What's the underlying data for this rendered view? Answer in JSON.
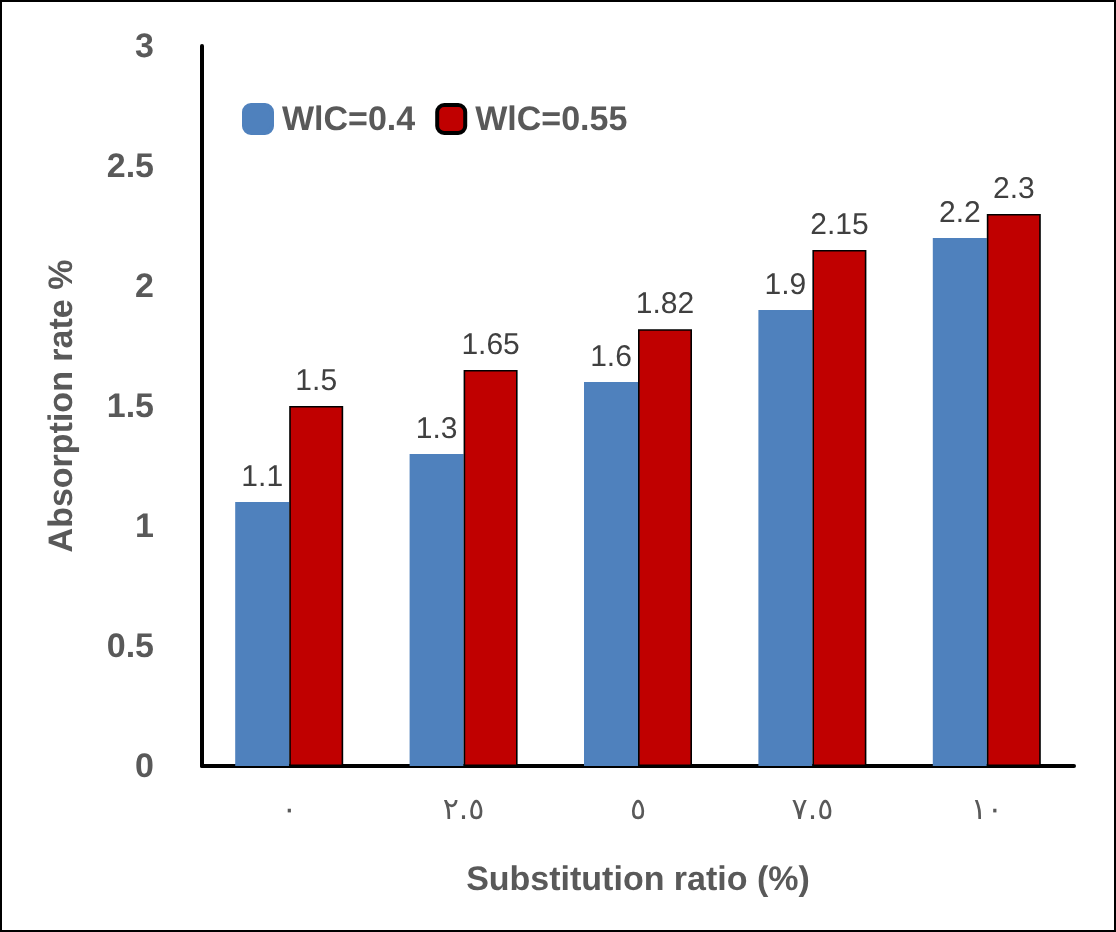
{
  "chart_data": {
    "type": "bar",
    "xlabel": "Substitution ratio (%)",
    "ylabel": "Absorption rate %",
    "categories": [
      "٠",
      "٢.٥",
      "٥",
      "٧.٥",
      "١٠"
    ],
    "series": [
      {
        "name": "WlC=0.4",
        "color": "#4f81bd",
        "values": [
          1.1,
          1.3,
          1.6,
          1.9,
          2.2
        ]
      },
      {
        "name": "WlC=0.55",
        "color": "#c00000",
        "values": [
          1.5,
          1.65,
          1.82,
          2.15,
          2.3
        ]
      }
    ],
    "ylim": [
      0,
      3
    ],
    "yticks": [
      0,
      0.5,
      1,
      1.5,
      2,
      2.5,
      3
    ],
    "grid": false,
    "legend": "top left",
    "data_labels": true
  }
}
